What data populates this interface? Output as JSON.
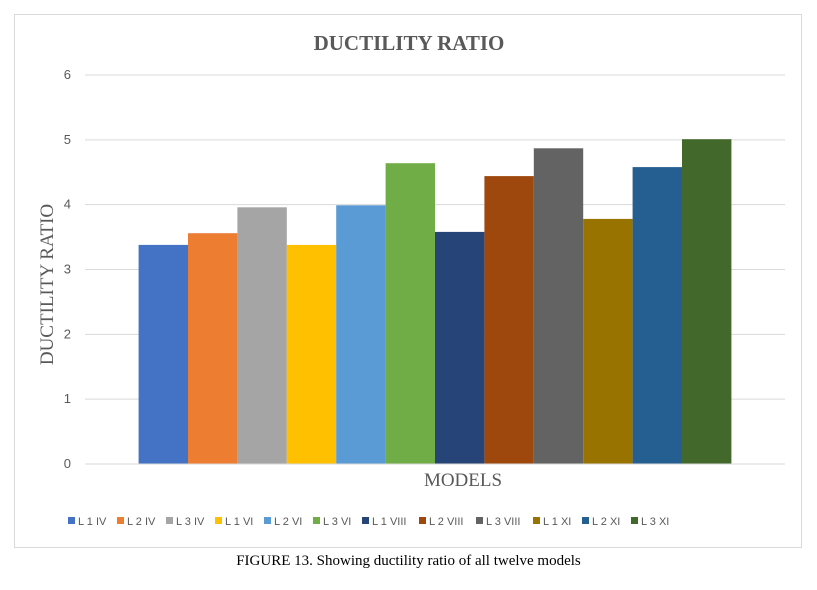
{
  "caption": "FIGURE 13. Showing ductility ratio of all twelve models",
  "chart_data": {
    "type": "bar",
    "title": "DUCTILITY RATIO",
    "xlabel": "MODELS",
    "ylabel": "DUCTILITY RATIO",
    "ylim": [
      0,
      6
    ],
    "yticks": [
      "0",
      "1",
      "2",
      "3",
      "4",
      "5",
      "6"
    ],
    "grid": true,
    "legend_position": "bottom",
    "series": [
      {
        "name": "L 1 IV",
        "value": 3.38,
        "color": "#4472C4"
      },
      {
        "name": "L 2 IV",
        "value": 3.56,
        "color": "#ED7D31"
      },
      {
        "name": "L 3 IV",
        "value": 3.96,
        "color": "#A5A5A5"
      },
      {
        "name": "L 1 VI",
        "value": 3.38,
        "color": "#FFC000"
      },
      {
        "name": "L 2 VI",
        "value": 3.99,
        "color": "#5B9BD5"
      },
      {
        "name": "L 3 VI",
        "value": 4.64,
        "color": "#70AD47"
      },
      {
        "name": "L 1 VIII",
        "value": 3.58,
        "color": "#264478"
      },
      {
        "name": "L 2 VIII",
        "value": 4.44,
        "color": "#9E480E"
      },
      {
        "name": "L 3 VIII",
        "value": 4.87,
        "color": "#636363"
      },
      {
        "name": "L 1 XI",
        "value": 3.78,
        "color": "#997300"
      },
      {
        "name": "L 2 XI",
        "value": 4.58,
        "color": "#255E91"
      },
      {
        "name": "L 3 XI",
        "value": 5.01,
        "color": "#43682B"
      }
    ]
  }
}
